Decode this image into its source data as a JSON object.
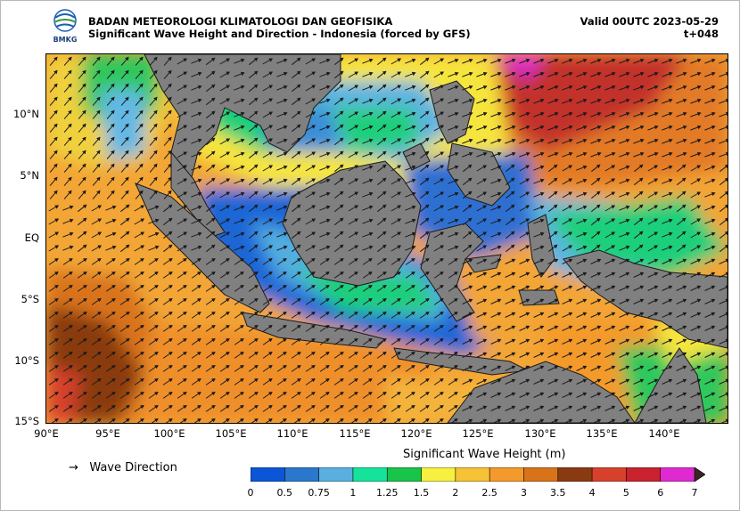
{
  "header": {
    "agency": "BADAN METEOROLOGI KLIMATOLOGI DAN GEOFISIKA",
    "title": "Significant Wave Height and Direction - Indonesia (forced by GFS)",
    "valid": "Valid 00UTC 2023-05-29",
    "lead_time": "t+048",
    "logo_text": "BMKG"
  },
  "axes": {
    "lat_labels": [
      "10°N",
      "5°N",
      "EQ",
      "5°S",
      "10°S",
      "15°S"
    ],
    "lon_labels": [
      "90°E",
      "95°E",
      "100°E",
      "105°E",
      "110°E",
      "115°E",
      "120°E",
      "125°E",
      "130°E",
      "135°E",
      "140°E"
    ],
    "lat_values": [
      10,
      5,
      0,
      -5,
      -10,
      -15
    ],
    "lon_values": [
      90,
      95,
      100,
      105,
      110,
      115,
      120,
      125,
      130,
      135,
      140
    ],
    "lon_range": [
      90,
      145
    ],
    "lat_range": [
      -15,
      15
    ]
  },
  "legend": {
    "arrow_symbol": "→",
    "wave_direction_label": "Wave Direction",
    "colorbar_title": "Significant Wave Height (m)",
    "ticks": [
      "0",
      "0.5",
      "0.75",
      "1",
      "1.25",
      "1.5",
      "2",
      "2.5",
      "3",
      "3.5",
      "4",
      "5",
      "6",
      "7"
    ],
    "colors": [
      "#0b55d6",
      "#2a77cc",
      "#5aaee0",
      "#16e39b",
      "#18c44a",
      "#f7f040",
      "#f6c236",
      "#f49a2c",
      "#d9731a",
      "#8a3a10",
      "#d6412c",
      "#c8232f",
      "#de2ad0",
      "#b036a8"
    ],
    "extend_color": "#3a2520"
  },
  "colors": {
    "land": "#808080",
    "coast": "#1a1a1a",
    "arrow": "#1b1b1b"
  }
}
